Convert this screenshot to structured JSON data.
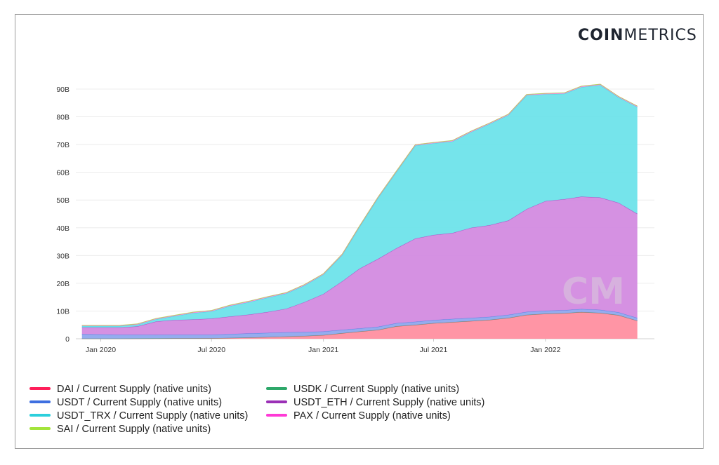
{
  "logo": {
    "bold": "COIN",
    "light": "METRICS"
  },
  "legend": [
    {
      "label": "DAI / Current Supply (native units)",
      "color": "#ff1f5a"
    },
    {
      "label": "USDK / Current Supply (native units)",
      "color": "#2ea86a"
    },
    {
      "label": "USDT / Current Supply (native units)",
      "color": "#3e6fe0"
    },
    {
      "label": "USDT_ETH / Current Supply (native units)",
      "color": "#9b30b6"
    },
    {
      "label": "USDT_TRX / Current Supply (native units)",
      "color": "#2ccfdc"
    },
    {
      "label": "PAX / Current Supply (native units)",
      "color": "#ff3ad6"
    },
    {
      "label": "SAI / Current Supply (native units)",
      "color": "#a3e43b"
    }
  ],
  "chart_data": {
    "type": "area",
    "stacked": true,
    "x_unit": "date",
    "x_ticks": [
      "Jan 2020",
      "Jul 2020",
      "Jan 2021",
      "Jul 2021",
      "Jan 2022"
    ],
    "y_ticks": [
      "0",
      "10B",
      "20B",
      "30B",
      "40B",
      "50B",
      "60B",
      "70B",
      "80B",
      "90B"
    ],
    "ylim": [
      0,
      90
    ],
    "y_unit": "billions",
    "grid": true,
    "legend_position": "bottom",
    "fill_colors": {
      "DAI": "#ff8fa0",
      "USDT": "#8fa8ee",
      "USDT_ETH": "#d38be0",
      "USDT_TRX": "#6ee3ea"
    },
    "x": [
      "2019-12-01",
      "2020-01-01",
      "2020-02-01",
      "2020-03-01",
      "2020-04-01",
      "2020-05-01",
      "2020-06-01",
      "2020-07-01",
      "2020-08-01",
      "2020-09-01",
      "2020-10-01",
      "2020-11-01",
      "2020-12-01",
      "2021-01-01",
      "2021-02-01",
      "2021-03-01",
      "2021-04-01",
      "2021-05-01",
      "2021-06-01",
      "2021-07-01",
      "2021-08-01",
      "2021-09-01",
      "2021-10-01",
      "2021-11-01",
      "2021-12-01",
      "2022-01-01",
      "2022-02-01",
      "2022-03-01",
      "2022-04-01",
      "2022-05-01",
      "2022-06-01"
    ],
    "series": [
      {
        "name": "DAI / Current Supply (native units)",
        "values": [
          0.05,
          0.05,
          0.05,
          0.08,
          0.1,
          0.12,
          0.13,
          0.15,
          0.3,
          0.4,
          0.6,
          0.8,
          1.0,
          1.3,
          2.0,
          2.6,
          3.2,
          4.5,
          5.0,
          5.6,
          6.0,
          6.4,
          6.8,
          7.5,
          8.6,
          9.0,
          9.2,
          9.6,
          9.3,
          8.5,
          6.5
        ]
      },
      {
        "name": "USDK / Current Supply (native units)",
        "values": [
          0.02,
          0.02,
          0.02,
          0.02,
          0.02,
          0.02,
          0.02,
          0.02,
          0.02,
          0.02,
          0.02,
          0.02,
          0.02,
          0.02,
          0.02,
          0.02,
          0.02,
          0.02,
          0.02,
          0.02,
          0.02,
          0.02,
          0.02,
          0.02,
          0.02,
          0.02,
          0.02,
          0.02,
          0.02,
          0.02,
          0.02
        ]
      },
      {
        "name": "USDT / Current Supply (native units)",
        "values": [
          1.6,
          1.5,
          1.4,
          1.35,
          1.3,
          1.3,
          1.3,
          1.3,
          1.4,
          1.5,
          1.5,
          1.5,
          1.4,
          1.3,
          1.2,
          1.1,
          1.1,
          1.1,
          1.1,
          1.1,
          1.1,
          1.1,
          1.1,
          1.1,
          1.1,
          1.1,
          1.1,
          1.1,
          1.1,
          1.0,
          1.0
        ]
      },
      {
        "name": "USDT_ETH / Current Supply (native units)",
        "values": [
          2.4,
          2.5,
          2.6,
          3.0,
          4.8,
          5.3,
          5.5,
          5.8,
          6.3,
          6.8,
          7.5,
          8.5,
          10.8,
          13.5,
          17.5,
          21.5,
          24.5,
          27.0,
          30.0,
          30.7,
          31.0,
          32.5,
          33.0,
          34.0,
          37.0,
          39.5,
          40.0,
          40.5,
          40.5,
          39.5,
          37.5
        ]
      },
      {
        "name": "USDT_TRX / Current Supply (native units)",
        "values": [
          0.5,
          0.5,
          0.5,
          0.6,
          0.8,
          1.4,
          2.3,
          2.6,
          3.8,
          4.5,
          5.2,
          5.5,
          6.0,
          7.0,
          9.5,
          15.0,
          22.0,
          27.5,
          33.5,
          33.0,
          33.0,
          34.5,
          36.5,
          38.0,
          41.0,
          38.5,
          38.0,
          39.5,
          40.5,
          38.0,
          38.5
        ]
      },
      {
        "name": "PAX / Current Supply (native units)",
        "values": [
          0.2,
          0.2,
          0.22,
          0.25,
          0.25,
          0.27,
          0.3,
          0.3,
          0.3,
          0.3,
          0.3,
          0.3,
          0.3,
          0.3,
          0.3,
          0.3,
          0.3,
          0.3,
          0.3,
          0.3,
          0.3,
          0.3,
          0.3,
          0.3,
          0.3,
          0.3,
          0.3,
          0.3,
          0.3,
          0.3,
          0.3
        ]
      },
      {
        "name": "SAI / Current Supply (native units)",
        "values": [
          0.05,
          0.05,
          0.05,
          0.05,
          0.05,
          0.05,
          0.05,
          0.05,
          0.05,
          0.05,
          0.05,
          0.05,
          0.05,
          0.05,
          0.05,
          0.05,
          0.05,
          0.05,
          0.05,
          0.05,
          0.05,
          0.05,
          0.05,
          0.05,
          0.05,
          0.05,
          0.05,
          0.05,
          0.05,
          0.05,
          0.05
        ]
      }
    ],
    "watermark": "CM"
  }
}
